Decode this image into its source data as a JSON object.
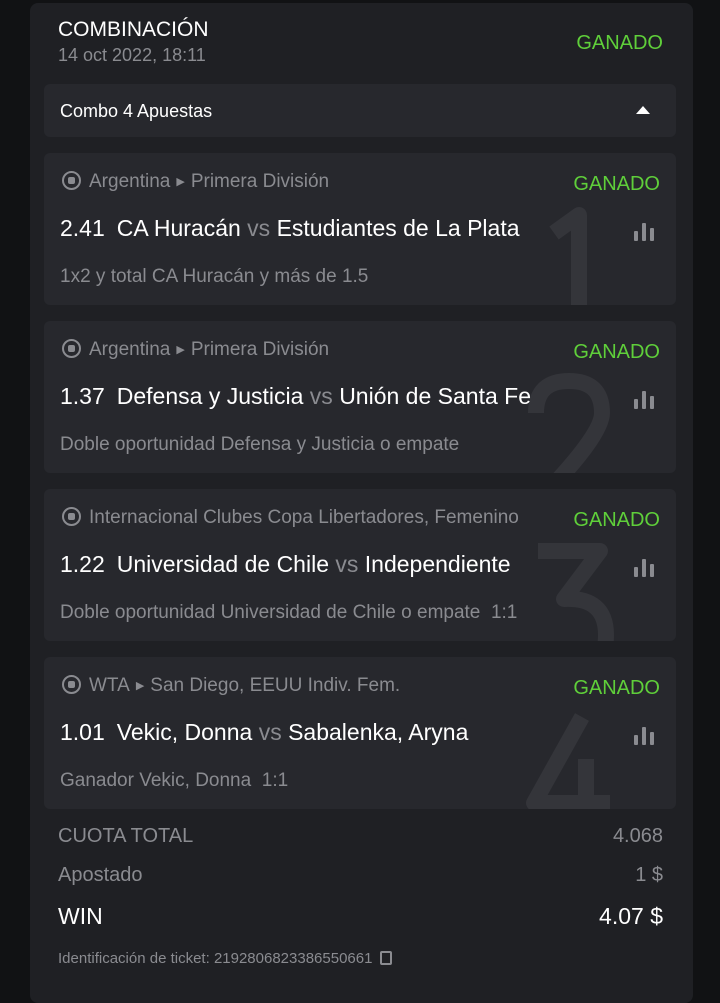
{
  "header": {
    "title": "COMBINACIÓN",
    "date": "14 oct 2022, 18:11",
    "status": "GANADO"
  },
  "combo": {
    "label": "Combo 4 Apuestas"
  },
  "bets": [
    {
      "index": "1",
      "sport": "soccer",
      "league": "Argentina",
      "sub": "Primera División",
      "status": "GANADO",
      "odds": "2.41",
      "home": "CA Huracán",
      "vs": "vs",
      "away": "Estudiantes de La Plata",
      "market": "1x2 y total CA Huracán y más de 1.5",
      "score": ""
    },
    {
      "index": "2",
      "sport": "soccer",
      "league": "Argentina",
      "sub": "Primera División",
      "status": "GANADO",
      "odds": "1.37",
      "home": "Defensa y Justicia",
      "vs": "vs",
      "away": "Unión de Santa Fe",
      "market": "Doble oportunidad Defensa y Justicia o empate",
      "score": ""
    },
    {
      "index": "3",
      "sport": "soccer",
      "league": "Internacional Clubes Copa Libertadores, Femenino",
      "sub": "",
      "status": "GANADO",
      "odds": "1.22",
      "home": "Universidad de Chile",
      "vs": "vs",
      "away": "Independiente",
      "market": "Doble oportunidad Universidad de Chile o empate",
      "score": "1:1"
    },
    {
      "index": "4",
      "sport": "tennis",
      "league": "WTA",
      "sub": "San Diego, EEUU Indiv. Fem.",
      "status": "GANADO",
      "odds": "1.01",
      "home": "Vekic, Donna",
      "vs": "vs",
      "away": "Sabalenka, Aryna",
      "market": "Ganador Vekic, Donna",
      "score": "1:1"
    }
  ],
  "summary": {
    "total_odds_label": "CUOTA TOTAL",
    "total_odds": "4.068",
    "stake_label": "Apostado",
    "stake": "1 $",
    "win_label": "WIN",
    "win": "4.07 $",
    "ticket_label": "Identificación de ticket:",
    "ticket_id": "219280682338655066 1"
  },
  "colors": {
    "win": "#5fcf3a",
    "background": "#1f2024",
    "card": "#27282d"
  }
}
